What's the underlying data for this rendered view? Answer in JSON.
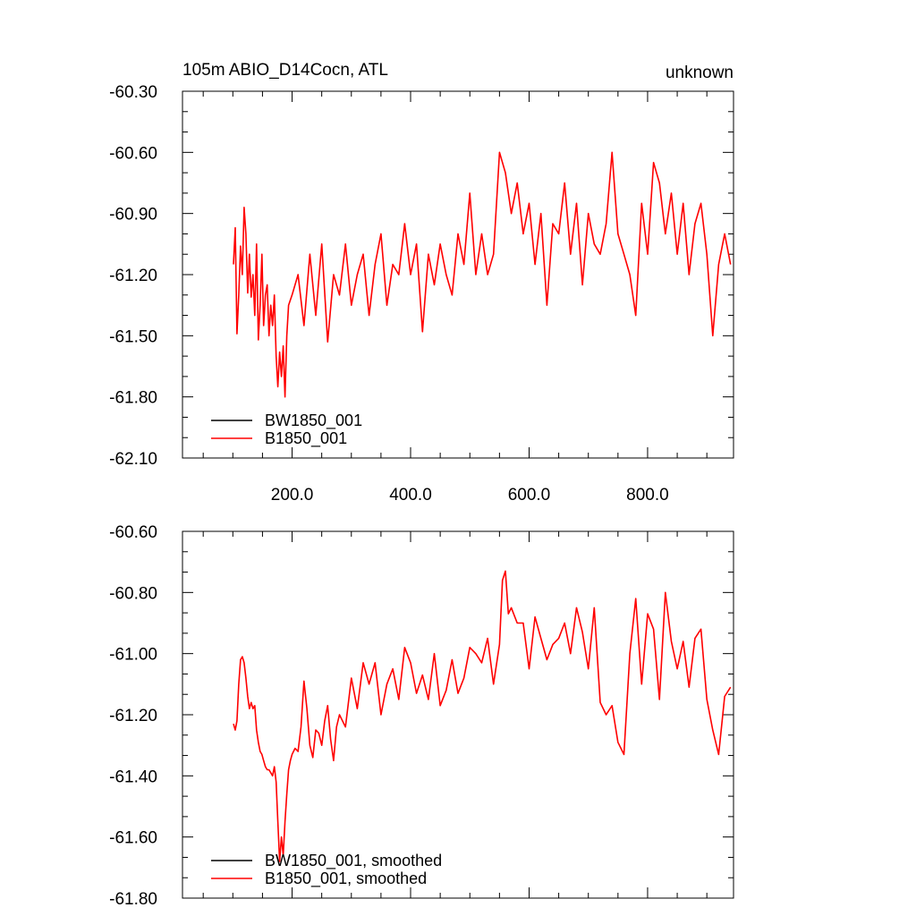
{
  "chart_data": [
    {
      "type": "line",
      "title": "105m ABIO_D14Cocn, ATL",
      "title_right": "unknown",
      "xlim": [
        15,
        945
      ],
      "ylim": [
        -62.1,
        -60.3
      ],
      "xticks": [
        200,
        400,
        600,
        800
      ],
      "xtick_labels": [
        "200.0",
        "400.0",
        "600.0",
        "800.0"
      ],
      "yticks": [
        -60.3,
        -60.6,
        -60.9,
        -61.2,
        -61.5,
        -61.8,
        -62.1
      ],
      "ytick_labels": [
        "-60.30",
        "-60.60",
        "-60.90",
        "-61.20",
        "-61.50",
        "-61.80",
        "-62.10"
      ],
      "legend_position": "bottom-left",
      "legend": [
        {
          "name": "BW1850_001",
          "color": "#000000"
        },
        {
          "name": "B1850_001",
          "color": "#ff0000"
        }
      ],
      "series": [
        {
          "name": "BW1850_001",
          "color": "#000000",
          "x": [],
          "y": []
        },
        {
          "name": "B1850_001",
          "color": "#ff0000",
          "x": [
            101,
            104,
            107,
            110,
            113,
            116,
            119,
            122,
            125,
            128,
            131,
            134,
            137,
            140,
            143,
            146,
            149,
            152,
            155,
            158,
            161,
            164,
            167,
            170,
            173,
            176,
            179,
            182,
            185,
            188,
            191,
            194,
            200,
            210,
            220,
            230,
            240,
            250,
            260,
            270,
            280,
            290,
            300,
            310,
            320,
            330,
            340,
            350,
            360,
            370,
            380,
            390,
            400,
            410,
            420,
            430,
            440,
            450,
            460,
            470,
            480,
            490,
            500,
            510,
            520,
            530,
            540,
            550,
            560,
            570,
            580,
            590,
            600,
            610,
            620,
            630,
            640,
            650,
            660,
            670,
            680,
            690,
            700,
            710,
            720,
            730,
            740,
            750,
            760,
            770,
            780,
            790,
            800,
            810,
            820,
            830,
            840,
            850,
            860,
            870,
            880,
            890,
            900,
            910,
            920,
            930,
            940
          ],
          "y": [
            -61.15,
            -60.97,
            -61.49,
            -61.3,
            -61.06,
            -61.2,
            -60.87,
            -61.0,
            -61.29,
            -61.1,
            -61.31,
            -61.2,
            -61.4,
            -61.05,
            -61.52,
            -61.35,
            -61.1,
            -61.45,
            -61.3,
            -61.25,
            -61.5,
            -61.35,
            -61.45,
            -61.3,
            -61.6,
            -61.75,
            -61.58,
            -61.7,
            -61.55,
            -61.8,
            -61.5,
            -61.35,
            -61.3,
            -61.2,
            -61.45,
            -61.1,
            -61.4,
            -61.05,
            -61.53,
            -61.2,
            -61.3,
            -61.05,
            -61.35,
            -61.2,
            -61.1,
            -61.4,
            -61.15,
            -61.0,
            -61.35,
            -61.15,
            -61.2,
            -60.95,
            -61.2,
            -61.05,
            -61.48,
            -61.1,
            -61.25,
            -61.05,
            -61.2,
            -61.3,
            -61.0,
            -61.15,
            -60.8,
            -61.2,
            -61.0,
            -61.2,
            -61.1,
            -60.6,
            -60.7,
            -60.9,
            -60.75,
            -61.0,
            -60.85,
            -61.15,
            -60.9,
            -61.35,
            -60.95,
            -61.0,
            -60.75,
            -61.1,
            -60.85,
            -61.25,
            -60.9,
            -61.05,
            -61.1,
            -60.95,
            -60.6,
            -61.0,
            -61.1,
            -61.2,
            -61.4,
            -60.85,
            -61.1,
            -60.65,
            -60.75,
            -61.0,
            -60.8,
            -61.1,
            -60.85,
            -61.2,
            -60.95,
            -60.85,
            -61.1,
            -61.5,
            -61.15,
            -61.0,
            -61.15
          ]
        }
      ]
    },
    {
      "type": "line",
      "title": "",
      "xlim": [
        15,
        945
      ],
      "ylim": [
        -61.8,
        -60.6
      ],
      "xticks": [
        200,
        400,
        600,
        800
      ],
      "xtick_labels": [],
      "yticks": [
        -60.6,
        -60.8,
        -61.0,
        -61.2,
        -61.4,
        -61.6,
        -61.8
      ],
      "ytick_labels": [
        "-60.60",
        "-60.80",
        "-61.00",
        "-61.20",
        "-61.40",
        "-61.60",
        "-61.80"
      ],
      "legend_position": "bottom-left",
      "legend": [
        {
          "name": "BW1850_001, smoothed",
          "color": "#000000"
        },
        {
          "name": "B1850_001, smoothed",
          "color": "#ff0000"
        }
      ],
      "series": [
        {
          "name": "BW1850_001, smoothed",
          "color": "#000000",
          "x": [],
          "y": []
        },
        {
          "name": "B1850_001, smoothed",
          "color": "#ff0000",
          "x": [
            101,
            104,
            107,
            110,
            113,
            116,
            119,
            122,
            125,
            128,
            131,
            134,
            137,
            140,
            143,
            146,
            149,
            152,
            155,
            158,
            161,
            164,
            167,
            170,
            173,
            176,
            179,
            182,
            185,
            188,
            191,
            194,
            197,
            200,
            205,
            210,
            215,
            220,
            225,
            230,
            235,
            240,
            245,
            250,
            255,
            260,
            265,
            270,
            275,
            280,
            290,
            300,
            310,
            320,
            330,
            340,
            350,
            360,
            370,
            380,
            390,
            400,
            410,
            420,
            430,
            440,
            450,
            460,
            470,
            480,
            490,
            500,
            510,
            520,
            530,
            540,
            550,
            555,
            560,
            565,
            570,
            580,
            590,
            600,
            610,
            620,
            630,
            640,
            650,
            660,
            670,
            680,
            690,
            700,
            710,
            720,
            730,
            740,
            750,
            760,
            770,
            780,
            790,
            800,
            810,
            820,
            830,
            840,
            850,
            860,
            870,
            880,
            890,
            900,
            910,
            920,
            930,
            940
          ],
          "y": [
            -61.23,
            -61.25,
            -61.22,
            -61.1,
            -61.02,
            -61.01,
            -61.03,
            -61.08,
            -61.14,
            -61.18,
            -61.16,
            -61.18,
            -61.17,
            -61.25,
            -61.29,
            -61.32,
            -61.33,
            -61.35,
            -61.37,
            -61.38,
            -61.38,
            -61.39,
            -61.4,
            -61.37,
            -61.42,
            -61.55,
            -61.68,
            -61.6,
            -61.66,
            -61.55,
            -61.46,
            -61.38,
            -61.35,
            -61.33,
            -61.31,
            -61.32,
            -61.24,
            -61.09,
            -61.18,
            -61.3,
            -61.34,
            -61.25,
            -61.26,
            -61.3,
            -61.22,
            -61.17,
            -61.28,
            -61.35,
            -61.24,
            -61.2,
            -61.24,
            -61.08,
            -61.18,
            -61.03,
            -61.1,
            -61.03,
            -61.2,
            -61.1,
            -61.05,
            -61.15,
            -60.98,
            -61.03,
            -61.13,
            -61.07,
            -61.15,
            -61.0,
            -61.17,
            -61.12,
            -61.02,
            -61.13,
            -61.08,
            -60.98,
            -61.0,
            -61.03,
            -60.95,
            -61.1,
            -60.97,
            -60.76,
            -60.73,
            -60.87,
            -60.85,
            -60.9,
            -60.9,
            -61.05,
            -60.88,
            -60.95,
            -61.02,
            -60.97,
            -60.95,
            -60.9,
            -61.0,
            -60.85,
            -60.93,
            -61.05,
            -60.85,
            -61.16,
            -61.2,
            -61.17,
            -61.29,
            -61.33,
            -61.0,
            -60.82,
            -61.1,
            -60.87,
            -60.92,
            -61.15,
            -60.8,
            -60.96,
            -61.05,
            -60.96,
            -61.11,
            -60.95,
            -60.92,
            -61.15,
            -61.25,
            -61.33,
            -61.14,
            -61.11
          ]
        }
      ]
    }
  ]
}
